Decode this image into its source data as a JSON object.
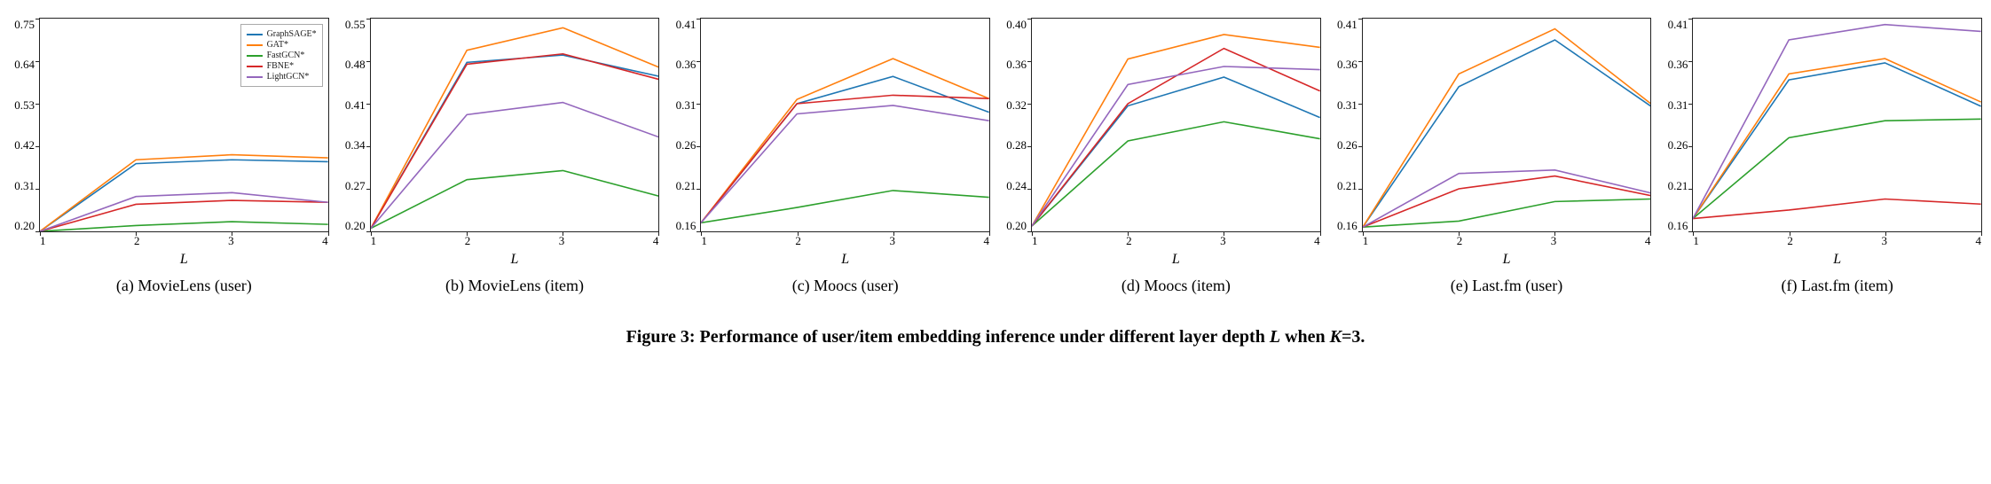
{
  "figure": {
    "caption_prefix": "Figure 3:  Performance of user/item embedding inference under different layer depth ",
    "caption_var1": "L",
    "caption_mid": " when ",
    "caption_var2": "K",
    "caption_suffix": "=3.",
    "xlabel": "L",
    "x_values": [
      1,
      2,
      3,
      4
    ],
    "line_width": 1.6,
    "series_meta": [
      {
        "key": "GraphSAGE",
        "label": "GraphSAGE*",
        "color": "#1f77b4"
      },
      {
        "key": "GAT",
        "label": "GAT*",
        "color": "#ff7f0e"
      },
      {
        "key": "FastGCN",
        "label": "FastGCN*",
        "color": "#2ca02c"
      },
      {
        "key": "FBNE",
        "label": "FBNE*",
        "color": "#d62728"
      },
      {
        "key": "LightGCN",
        "label": "LightGCN*",
        "color": "#9467bd"
      }
    ],
    "legend_panel_index": 0,
    "tick_fontsize": 13,
    "label_fontsize": 16,
    "subcaption_fontsize": 18,
    "caption_fontsize": 20,
    "panels": [
      {
        "subcaption": "(a)  MovieLens (user)",
        "ylim": [
          0.2,
          0.75
        ],
        "yticks": [
          0.2,
          0.31,
          0.42,
          0.53,
          0.64,
          0.75
        ],
        "series": {
          "GraphSAGE": [
            0.2,
            0.375,
            0.385,
            0.38
          ],
          "GAT": [
            0.2,
            0.385,
            0.398,
            0.39
          ],
          "FastGCN": [
            0.2,
            0.215,
            0.225,
            0.218
          ],
          "FBNE": [
            0.2,
            0.27,
            0.28,
            0.275
          ],
          "LightGCN": [
            0.2,
            0.29,
            0.3,
            0.275
          ]
        }
      },
      {
        "subcaption": "(b)  MovieLens (item)",
        "ylim": [
          0.2,
          0.55
        ],
        "yticks": [
          0.2,
          0.27,
          0.34,
          0.41,
          0.48,
          0.55
        ],
        "series": {
          "GraphSAGE": [
            0.205,
            0.478,
            0.49,
            0.455
          ],
          "GAT": [
            0.205,
            0.498,
            0.535,
            0.47
          ],
          "FastGCN": [
            0.205,
            0.285,
            0.3,
            0.258
          ],
          "FBNE": [
            0.205,
            0.475,
            0.492,
            0.45
          ],
          "LightGCN": [
            0.205,
            0.392,
            0.412,
            0.355
          ]
        }
      },
      {
        "subcaption": "(c)  Moocs (user)",
        "ylim": [
          0.16,
          0.41
        ],
        "yticks": [
          0.16,
          0.21,
          0.26,
          0.31,
          0.36,
          0.41
        ],
        "series": {
          "GraphSAGE": [
            0.17,
            0.31,
            0.342,
            0.3
          ],
          "GAT": [
            0.17,
            0.315,
            0.363,
            0.316
          ],
          "FastGCN": [
            0.17,
            0.188,
            0.208,
            0.2
          ],
          "FBNE": [
            0.17,
            0.31,
            0.32,
            0.316
          ],
          "LightGCN": [
            0.17,
            0.298,
            0.308,
            0.29
          ]
        }
      },
      {
        "subcaption": "(d)  Moocs (item)",
        "ylim": [
          0.2,
          0.4
        ],
        "yticks": [
          0.2,
          0.24,
          0.28,
          0.32,
          0.36,
          0.4
        ],
        "series": {
          "GraphSAGE": [
            0.205,
            0.318,
            0.345,
            0.307
          ],
          "GAT": [
            0.205,
            0.362,
            0.385,
            0.373
          ],
          "FastGCN": [
            0.205,
            0.285,
            0.303,
            0.287
          ],
          "FBNE": [
            0.205,
            0.32,
            0.372,
            0.332
          ],
          "LightGCN": [
            0.205,
            0.338,
            0.355,
            0.352
          ]
        }
      },
      {
        "subcaption": "(e)  Last.fm (user)",
        "ylim": [
          0.16,
          0.41
        ],
        "yticks": [
          0.16,
          0.21,
          0.26,
          0.31,
          0.36,
          0.41
        ],
        "series": {
          "GraphSAGE": [
            0.165,
            0.33,
            0.385,
            0.307
          ],
          "GAT": [
            0.165,
            0.345,
            0.398,
            0.31
          ],
          "FastGCN": [
            0.165,
            0.172,
            0.195,
            0.198
          ],
          "FBNE": [
            0.165,
            0.21,
            0.225,
            0.202
          ],
          "LightGCN": [
            0.165,
            0.228,
            0.232,
            0.205
          ]
        }
      },
      {
        "subcaption": "(f)  Last.fm (item)",
        "ylim": [
          0.16,
          0.41
        ],
        "yticks": [
          0.16,
          0.21,
          0.26,
          0.31,
          0.36,
          0.41
        ],
        "series": {
          "GraphSAGE": [
            0.175,
            0.338,
            0.358,
            0.307
          ],
          "GAT": [
            0.175,
            0.345,
            0.363,
            0.312
          ],
          "FastGCN": [
            0.175,
            0.27,
            0.29,
            0.292
          ],
          "FBNE": [
            0.175,
            0.185,
            0.198,
            0.192
          ],
          "LightGCN": [
            0.175,
            0.385,
            0.403,
            0.395
          ]
        }
      }
    ]
  }
}
